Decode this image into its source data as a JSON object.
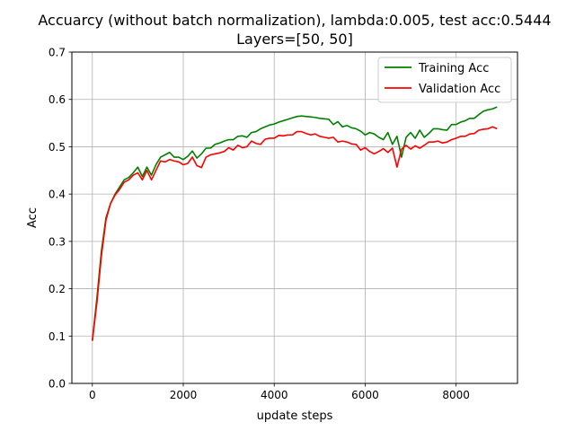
{
  "chart_data": {
    "type": "line",
    "title": "Accuarcy (without batch normalization), lambda:0.005, test acc:0.5444",
    "subtitle": "Layers=[50, 50]",
    "xlabel": "update steps",
    "ylabel": "Acc",
    "xlim": [
      -450,
      9350
    ],
    "ylim": [
      0,
      0.7
    ],
    "xticks": [
      0,
      2000,
      4000,
      6000,
      8000
    ],
    "yticks": [
      0.0,
      0.1,
      0.2,
      0.3,
      0.4,
      0.5,
      0.6,
      0.7
    ],
    "grid": true,
    "legend_position": "top-right",
    "x": [
      0,
      100,
      200,
      300,
      400,
      500,
      600,
      700,
      800,
      900,
      1000,
      1100,
      1200,
      1300,
      1400,
      1500,
      1600,
      1700,
      1800,
      1900,
      2000,
      2100,
      2200,
      2300,
      2400,
      2500,
      2600,
      2700,
      2800,
      2900,
      3000,
      3100,
      3200,
      3300,
      3400,
      3500,
      3600,
      3700,
      3800,
      3900,
      4000,
      4100,
      4200,
      4300,
      4400,
      4500,
      4600,
      4700,
      4800,
      4900,
      5000,
      5100,
      5200,
      5300,
      5400,
      5500,
      5600,
      5700,
      5800,
      5900,
      6000,
      6100,
      6200,
      6300,
      6400,
      6500,
      6600,
      6700,
      6800,
      6900,
      7000,
      7100,
      7200,
      7300,
      7400,
      7500,
      7600,
      7700,
      7800,
      7900,
      8000,
      8100,
      8200,
      8300,
      8400,
      8500,
      8600,
      8700,
      8800,
      8900
    ],
    "series": [
      {
        "name": "Training Acc",
        "color": "#008000",
        "values": [
          0.09,
          0.18,
          0.28,
          0.35,
          0.38,
          0.4,
          0.415,
          0.43,
          0.435,
          0.445,
          0.457,
          0.437,
          0.457,
          0.44,
          0.462,
          0.478,
          0.483,
          0.488,
          0.478,
          0.478,
          0.473,
          0.48,
          0.491,
          0.476,
          0.485,
          0.497,
          0.497,
          0.505,
          0.508,
          0.512,
          0.515,
          0.515,
          0.522,
          0.523,
          0.52,
          0.53,
          0.532,
          0.538,
          0.542,
          0.546,
          0.548,
          0.552,
          0.555,
          0.558,
          0.561,
          0.564,
          0.565,
          0.564,
          0.563,
          0.562,
          0.56,
          0.559,
          0.558,
          0.547,
          0.553,
          0.542,
          0.545,
          0.54,
          0.538,
          0.533,
          0.525,
          0.53,
          0.527,
          0.52,
          0.515,
          0.53,
          0.505,
          0.522,
          0.478,
          0.52,
          0.53,
          0.518,
          0.535,
          0.52,
          0.528,
          0.538,
          0.538,
          0.536,
          0.535,
          0.547,
          0.547,
          0.552,
          0.555,
          0.56,
          0.56,
          0.568,
          0.575,
          0.578,
          0.58,
          0.584
        ]
      },
      {
        "name": "Validation Acc",
        "color": "#ff0000",
        "values": [
          0.09,
          0.17,
          0.27,
          0.345,
          0.38,
          0.398,
          0.41,
          0.425,
          0.43,
          0.44,
          0.445,
          0.43,
          0.45,
          0.43,
          0.45,
          0.47,
          0.468,
          0.473,
          0.47,
          0.468,
          0.462,
          0.465,
          0.478,
          0.46,
          0.456,
          0.478,
          0.483,
          0.485,
          0.487,
          0.49,
          0.498,
          0.493,
          0.503,
          0.498,
          0.5,
          0.512,
          0.507,
          0.505,
          0.516,
          0.518,
          0.518,
          0.524,
          0.523,
          0.525,
          0.525,
          0.532,
          0.532,
          0.528,
          0.525,
          0.527,
          0.522,
          0.52,
          0.518,
          0.52,
          0.51,
          0.512,
          0.51,
          0.506,
          0.505,
          0.493,
          0.498,
          0.49,
          0.485,
          0.49,
          0.496,
          0.488,
          0.497,
          0.457,
          0.495,
          0.503,
          0.495,
          0.502,
          0.497,
          0.503,
          0.51,
          0.51,
          0.512,
          0.508,
          0.51,
          0.515,
          0.518,
          0.522,
          0.522,
          0.527,
          0.528,
          0.535,
          0.537,
          0.538,
          0.542,
          0.538
        ]
      }
    ]
  }
}
